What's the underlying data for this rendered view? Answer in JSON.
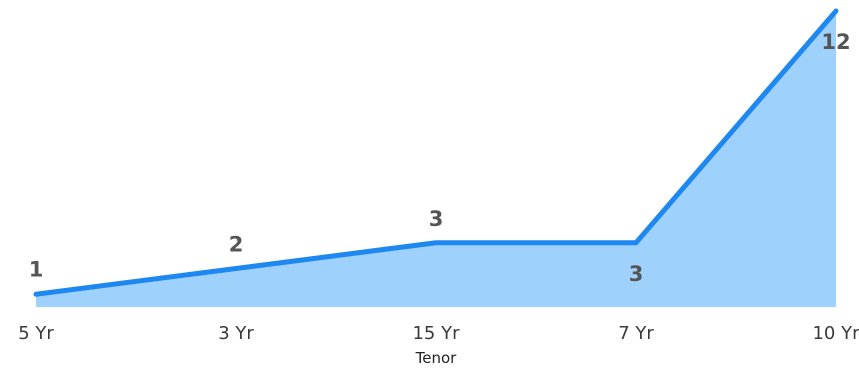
{
  "colors": {
    "line": "#1e88f0",
    "area": "#9fd1fd",
    "label": "#555555",
    "tick": "#3a3a3a"
  },
  "chart_data": {
    "type": "area",
    "categories": [
      "5 Yr",
      "3 Yr",
      "15 Yr",
      "7 Yr",
      "10 Yr"
    ],
    "series": [
      {
        "values": [
          1,
          2,
          3,
          3,
          12
        ]
      }
    ],
    "data_labels": [
      "1",
      "2",
      "3",
      "3",
      "12"
    ],
    "xlabel": "Tenor",
    "ylabel": "",
    "title": "",
    "ylim": [
      0,
      12
    ],
    "grid": false,
    "legend": "none"
  }
}
